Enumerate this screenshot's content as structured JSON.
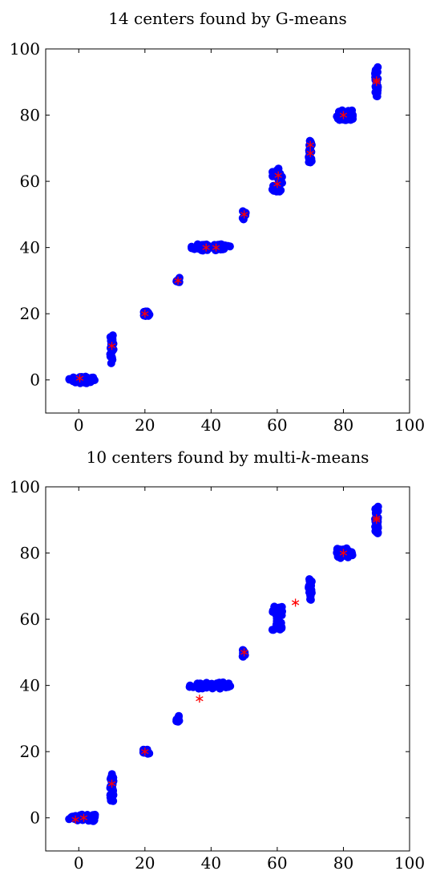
{
  "chart_data": [
    {
      "type": "scatter",
      "title_parts": [
        {
          "text": "14 centers found by G-means",
          "italic": false
        }
      ],
      "xlim": [
        -10,
        100
      ],
      "ylim": [
        -10,
        100
      ],
      "xticks": [
        0,
        20,
        40,
        60,
        80,
        100
      ],
      "yticks": [
        0,
        20,
        40,
        60,
        80,
        100
      ],
      "grid": false,
      "colors": {
        "points": "#0000ff",
        "centers": "#ff0000"
      },
      "point_groups": [
        {
          "x": [
            -3,
            5
          ],
          "y": [
            -1,
            1
          ],
          "n": 45
        },
        {
          "x": [
            9.5,
            10.5
          ],
          "y": [
            5,
            13.5
          ],
          "n": 30
        },
        {
          "x": [
            19.5,
            21.5
          ],
          "y": [
            19.3,
            20.7
          ],
          "n": 22
        },
        {
          "x": [
            29.5,
            30.5
          ],
          "y": [
            29,
            31
          ],
          "n": 10
        },
        {
          "x": [
            33.5,
            35
          ],
          "y": [
            39.5,
            40.3
          ],
          "n": 3
        },
        {
          "x": [
            35.5,
            46
          ],
          "y": [
            39,
            41
          ],
          "n": 42
        },
        {
          "x": [
            49.5,
            50.5
          ],
          "y": [
            48.5,
            51
          ],
          "n": 10
        },
        {
          "x": [
            58.5,
            61.5
          ],
          "y": [
            56.5,
            64
          ],
          "n": 30
        },
        {
          "x": [
            69.5,
            70.5
          ],
          "y": [
            65.5,
            72.5
          ],
          "n": 24
        },
        {
          "x": [
            78,
            83
          ],
          "y": [
            78.5,
            81.5
          ],
          "n": 38
        },
        {
          "x": [
            89.5,
            90.5
          ],
          "y": [
            85.5,
            94.5
          ],
          "n": 30
        }
      ],
      "centers": [
        {
          "x": 0.3,
          "y": 0.5
        },
        {
          "x": 10,
          "y": 10.3
        },
        {
          "x": 20,
          "y": 20
        },
        {
          "x": 30,
          "y": 30
        },
        {
          "x": 38.5,
          "y": 40
        },
        {
          "x": 41.5,
          "y": 40
        },
        {
          "x": 50,
          "y": 50
        },
        {
          "x": 60.3,
          "y": 61.8
        },
        {
          "x": 60,
          "y": 59.2
        },
        {
          "x": 70,
          "y": 71
        },
        {
          "x": 70,
          "y": 68.5
        },
        {
          "x": 80,
          "y": 80
        },
        {
          "x": 90,
          "y": 90.5
        },
        {
          "x": 90,
          "y": 90
        }
      ]
    },
    {
      "type": "scatter",
      "title_parts": [
        {
          "text": "10 centers found by multi-",
          "italic": false
        },
        {
          "text": "k",
          "italic": true
        },
        {
          "text": "-means",
          "italic": false
        }
      ],
      "xlim": [
        -10,
        100
      ],
      "ylim": [
        -10,
        100
      ],
      "xticks": [
        0,
        20,
        40,
        60,
        80,
        100
      ],
      "yticks": [
        0,
        20,
        40,
        60,
        80,
        100
      ],
      "grid": false,
      "colors": {
        "points": "#0000ff",
        "centers": "#ff0000"
      },
      "point_groups": [
        {
          "x": [
            -3,
            5
          ],
          "y": [
            -1,
            1
          ],
          "n": 45
        },
        {
          "x": [
            9.5,
            10.5
          ],
          "y": [
            5,
            13.5
          ],
          "n": 30
        },
        {
          "x": [
            19.5,
            21.5
          ],
          "y": [
            19.3,
            20.7
          ],
          "n": 22
        },
        {
          "x": [
            29.5,
            30.5
          ],
          "y": [
            29,
            31
          ],
          "n": 10
        },
        {
          "x": [
            33.5,
            35
          ],
          "y": [
            39.5,
            40.3
          ],
          "n": 3
        },
        {
          "x": [
            35.5,
            46
          ],
          "y": [
            39,
            41
          ],
          "n": 42
        },
        {
          "x": [
            49.5,
            50.5
          ],
          "y": [
            48.5,
            51
          ],
          "n": 10
        },
        {
          "x": [
            58.5,
            61.5
          ],
          "y": [
            56.5,
            64
          ],
          "n": 30
        },
        {
          "x": [
            69.5,
            70.5
          ],
          "y": [
            65.5,
            72.5
          ],
          "n": 24
        },
        {
          "x": [
            78,
            83
          ],
          "y": [
            78.5,
            81.5
          ],
          "n": 38
        },
        {
          "x": [
            89.5,
            90.5
          ],
          "y": [
            85.5,
            94.5
          ],
          "n": 30
        }
      ],
      "centers": [
        {
          "x": -1,
          "y": -0.5
        },
        {
          "x": 1.5,
          "y": 0
        },
        {
          "x": 10,
          "y": 10.3
        },
        {
          "x": 20,
          "y": 20
        },
        {
          "x": 36.5,
          "y": 36
        },
        {
          "x": 50,
          "y": 50
        },
        {
          "x": 65.5,
          "y": 65
        },
        {
          "x": 80,
          "y": 80
        },
        {
          "x": 90,
          "y": 90.5
        },
        {
          "x": 90,
          "y": 90
        }
      ]
    }
  ]
}
